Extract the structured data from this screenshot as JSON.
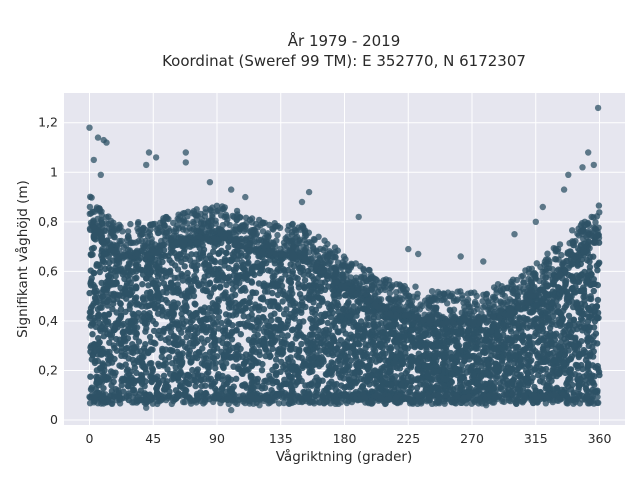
{
  "chart_data": {
    "type": "scatter",
    "title_lines": [
      "År 1979 - 2019",
      "Koordinat (Sweref 99 TM): E 352770, N 6172307"
    ],
    "xlabel": "Vågriktning (grader)",
    "ylabel": "Signifikant våghöjd (m)",
    "xlim": [
      -18,
      378
    ],
    "ylim": [
      -0.02,
      1.32
    ],
    "x_ticks": [
      0,
      45,
      90,
      135,
      180,
      225,
      270,
      315,
      360
    ],
    "y_ticks": [
      0,
      0.2,
      0.4,
      0.6,
      0.8,
      1,
      1.2
    ],
    "y_tick_labels": [
      "0",
      "0,2",
      "0,4",
      "0,6",
      "0,8",
      "1",
      "1,2"
    ],
    "grid": true,
    "marker_color": "#2e5266",
    "background_color": "#e6e6ef",
    "dense_band_upper_envelope": [
      {
        "x": 0,
        "y": 0.86
      },
      {
        "x": 20,
        "y": 0.74
      },
      {
        "x": 45,
        "y": 0.76
      },
      {
        "x": 70,
        "y": 0.8
      },
      {
        "x": 95,
        "y": 0.82
      },
      {
        "x": 120,
        "y": 0.76
      },
      {
        "x": 150,
        "y": 0.74
      },
      {
        "x": 180,
        "y": 0.62
      },
      {
        "x": 210,
        "y": 0.52
      },
      {
        "x": 240,
        "y": 0.48
      },
      {
        "x": 270,
        "y": 0.47
      },
      {
        "x": 300,
        "y": 0.52
      },
      {
        "x": 330,
        "y": 0.66
      },
      {
        "x": 360,
        "y": 0.82
      }
    ],
    "dense_band_lower_bound": 0.08,
    "outliers": [
      {
        "x": 0,
        "y": 1.18
      },
      {
        "x": 3,
        "y": 1.05
      },
      {
        "x": 6,
        "y": 1.14
      },
      {
        "x": 10,
        "y": 1.13
      },
      {
        "x": 12,
        "y": 1.12
      },
      {
        "x": 8,
        "y": 0.99
      },
      {
        "x": 40,
        "y": 1.03
      },
      {
        "x": 42,
        "y": 1.08
      },
      {
        "x": 47,
        "y": 1.06
      },
      {
        "x": 68,
        "y": 1.08
      },
      {
        "x": 68,
        "y": 1.04
      },
      {
        "x": 85,
        "y": 0.96
      },
      {
        "x": 100,
        "y": 0.93
      },
      {
        "x": 110,
        "y": 0.9
      },
      {
        "x": 150,
        "y": 0.88
      },
      {
        "x": 155,
        "y": 0.92
      },
      {
        "x": 190,
        "y": 0.82
      },
      {
        "x": 225,
        "y": 0.69
      },
      {
        "x": 232,
        "y": 0.67
      },
      {
        "x": 262,
        "y": 0.66
      },
      {
        "x": 278,
        "y": 0.64
      },
      {
        "x": 300,
        "y": 0.75
      },
      {
        "x": 315,
        "y": 0.8
      },
      {
        "x": 320,
        "y": 0.86
      },
      {
        "x": 335,
        "y": 0.93
      },
      {
        "x": 338,
        "y": 0.99
      },
      {
        "x": 348,
        "y": 1.02
      },
      {
        "x": 352,
        "y": 1.08
      },
      {
        "x": 356,
        "y": 1.03
      },
      {
        "x": 359,
        "y": 1.26
      },
      {
        "x": 40,
        "y": 0.05
      },
      {
        "x": 100,
        "y": 0.04
      },
      {
        "x": 120,
        "y": 0.06
      },
      {
        "x": 280,
        "y": 0.06
      }
    ]
  }
}
